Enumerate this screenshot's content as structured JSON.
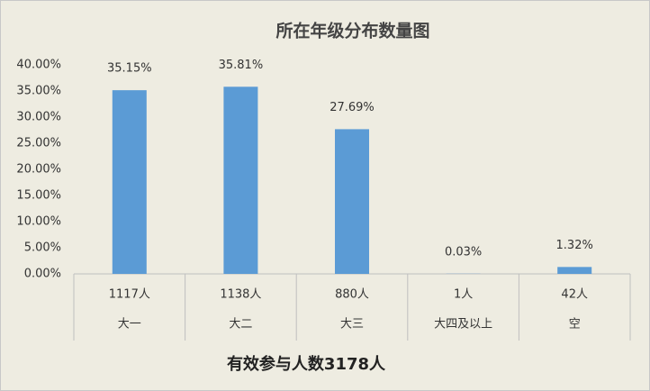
{
  "chart_data": {
    "type": "bar",
    "title": "所在年级分布数量图",
    "categories": [
      "大一",
      "大二",
      "大三",
      "大四及以上",
      "空"
    ],
    "category_counts": [
      "1117人",
      "1138人",
      "880人",
      "1人",
      "42人"
    ],
    "values": [
      35.15,
      35.81,
      27.69,
      0.03,
      1.32
    ],
    "value_labels": [
      "35.15%",
      "35.81%",
      "27.69%",
      "0.03%",
      "1.32%"
    ],
    "color": "#5b9bd5",
    "ylim": [
      0,
      40
    ],
    "yticks": [
      {
        "value": 0,
        "label": "0.00%"
      },
      {
        "value": 5,
        "label": "5.00%"
      },
      {
        "value": 10,
        "label": "10.00%"
      },
      {
        "value": 15,
        "label": "15.00%"
      },
      {
        "value": 20,
        "label": "20.00%"
      },
      {
        "value": 25,
        "label": "25.00%"
      },
      {
        "value": 30,
        "label": "30.00%"
      },
      {
        "value": 35,
        "label": "35.00%"
      },
      {
        "value": 40,
        "label": "40.00%"
      }
    ],
    "grid": false,
    "caption": "有效参与人数3178人"
  }
}
